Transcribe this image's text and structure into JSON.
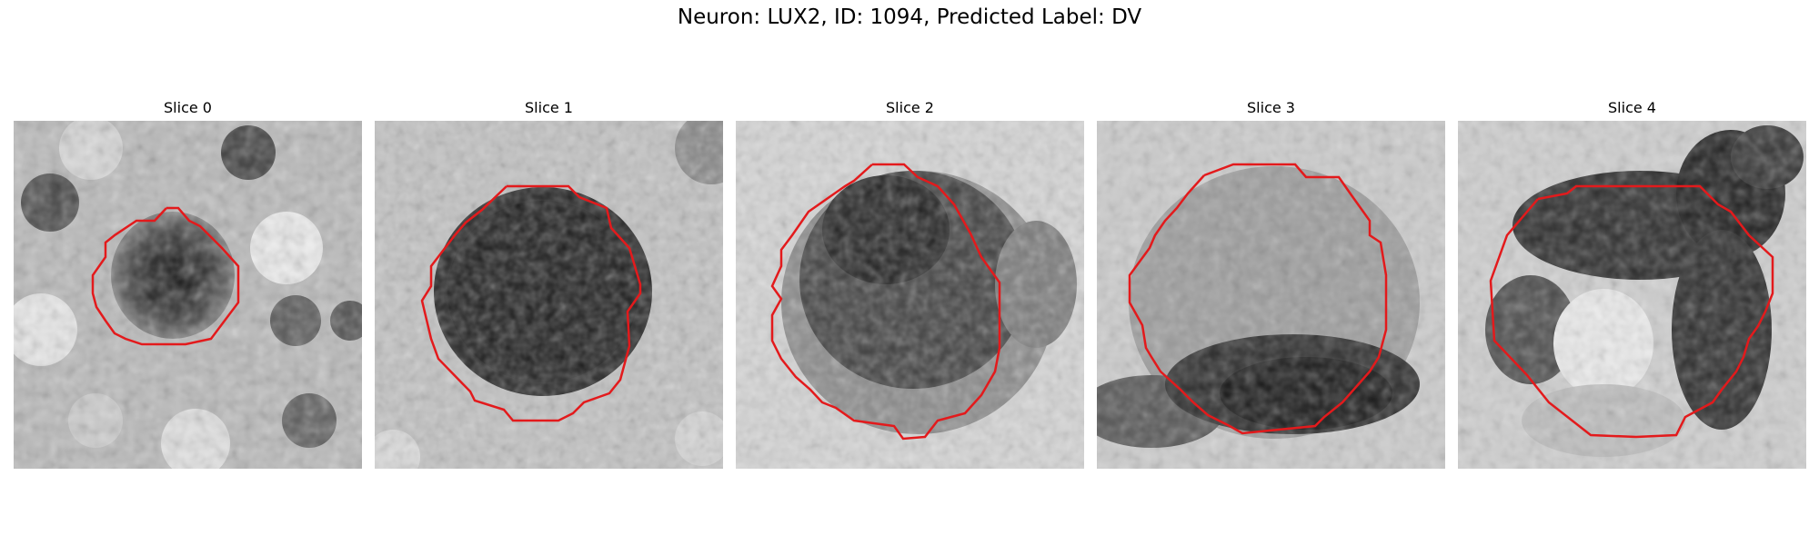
{
  "figure": {
    "title": "Neuron: LUX2, ID: 1094, Predicted Label: DV"
  },
  "panels": [
    {
      "title": "Slice 0"
    },
    {
      "title": "Slice 1"
    },
    {
      "title": "Slice 2"
    },
    {
      "title": "Slice 3"
    },
    {
      "title": "Slice 4"
    }
  ],
  "colors": {
    "contour": "#e31a1c",
    "background": "#ffffff"
  }
}
